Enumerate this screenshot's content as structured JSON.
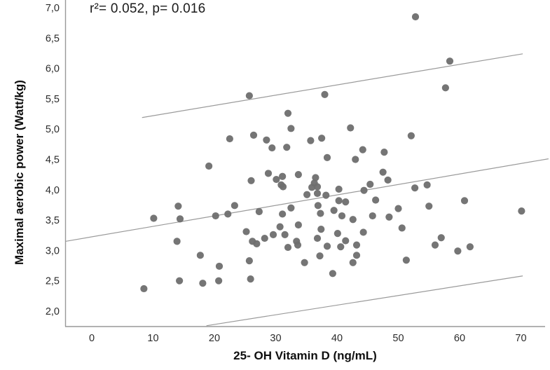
{
  "chart_data": {
    "type": "scatter",
    "title": "",
    "annotation": "r²= 0.052, p= 0.016",
    "stats": {
      "r_squared": 0.052,
      "p_value": 0.016
    },
    "xlabel": "25- OH Vitamin D (ng/mL)",
    "ylabel": "Maximal aerobic power  (Watt/kg)",
    "xlim": [
      -4.3,
      74.5
    ],
    "ylim": [
      1.76,
      7.13
    ],
    "grid": false,
    "legend": "none",
    "decimal_style": "comma",
    "point_color": "#6e6e6e",
    "line_color": "#9a9a9a",
    "axis_color": "#999999",
    "x_ticks": {
      "values": [
        0,
        10,
        20,
        30,
        40,
        50,
        60,
        70
      ],
      "labels": [
        "0",
        "10",
        "20",
        "30",
        "40",
        "50",
        "60",
        "70"
      ]
    },
    "y_ticks": {
      "values": [
        2.0,
        2.5,
        3.0,
        3.5,
        4.0,
        4.5,
        5.0,
        5.5,
        6.0,
        6.5,
        7.0
      ],
      "labels": [
        "2,0",
        "2,5",
        "3,0",
        "3,5",
        "4,0",
        "4,5",
        "5,0",
        "5,5",
        "6,0",
        "6,5",
        "7,0"
      ]
    },
    "points": [
      [
        8.5,
        2.37
      ],
      [
        10.1,
        3.53
      ],
      [
        13.9,
        3.15
      ],
      [
        14.1,
        3.73
      ],
      [
        14.3,
        2.5
      ],
      [
        14.4,
        3.52
      ],
      [
        17.7,
        2.92
      ],
      [
        18.1,
        2.46
      ],
      [
        19.1,
        4.39
      ],
      [
        20.2,
        3.57
      ],
      [
        20.7,
        2.5
      ],
      [
        20.8,
        2.74
      ],
      [
        22.2,
        3.6
      ],
      [
        22.5,
        4.84
      ],
      [
        23.3,
        3.74
      ],
      [
        25.2,
        3.31
      ],
      [
        25.7,
        5.55
      ],
      [
        25.7,
        2.83
      ],
      [
        25.9,
        2.53
      ],
      [
        26.0,
        4.15
      ],
      [
        26.2,
        3.15
      ],
      [
        26.4,
        4.9
      ],
      [
        26.9,
        3.11
      ],
      [
        27.3,
        3.64
      ],
      [
        28.2,
        3.2
      ],
      [
        28.5,
        4.82
      ],
      [
        28.8,
        4.27
      ],
      [
        29.4,
        4.69
      ],
      [
        29.6,
        3.26
      ],
      [
        30.1,
        4.17
      ],
      [
        30.7,
        3.39
      ],
      [
        30.9,
        4.08
      ],
      [
        31.1,
        4.22
      ],
      [
        31.1,
        3.6
      ],
      [
        31.2,
        4.05
      ],
      [
        31.5,
        3.26
      ],
      [
        31.8,
        4.7
      ],
      [
        32.0,
        5.26
      ],
      [
        32.0,
        3.05
      ],
      [
        32.5,
        5.01
      ],
      [
        32.5,
        3.7
      ],
      [
        33.4,
        3.15
      ],
      [
        33.6,
        3.09
      ],
      [
        33.7,
        4.25
      ],
      [
        33.7,
        3.42
      ],
      [
        34.7,
        2.8
      ],
      [
        35.1,
        3.92
      ],
      [
        35.7,
        4.81
      ],
      [
        35.9,
        4.04
      ],
      [
        36.3,
        4.11
      ],
      [
        36.5,
        4.2
      ],
      [
        36.8,
        4.05
      ],
      [
        36.8,
        3.94
      ],
      [
        36.8,
        3.2
      ],
      [
        36.9,
        3.74
      ],
      [
        37.2,
        2.91
      ],
      [
        37.3,
        3.61
      ],
      [
        37.4,
        3.35
      ],
      [
        37.5,
        4.85
      ],
      [
        38.0,
        5.57
      ],
      [
        38.2,
        3.91
      ],
      [
        38.4,
        4.53
      ],
      [
        38.4,
        3.07
      ],
      [
        39.3,
        2.62
      ],
      [
        39.5,
        3.66
      ],
      [
        40.1,
        3.28
      ],
      [
        40.3,
        4.01
      ],
      [
        40.3,
        3.82
      ],
      [
        40.6,
        3.06
      ],
      [
        40.8,
        3.57
      ],
      [
        41.4,
        3.8
      ],
      [
        41.4,
        3.16
      ],
      [
        42.2,
        5.02
      ],
      [
        42.6,
        3.51
      ],
      [
        42.6,
        2.8
      ],
      [
        43.0,
        4.5
      ],
      [
        43.2,
        3.09
      ],
      [
        43.2,
        2.92
      ],
      [
        44.2,
        4.66
      ],
      [
        44.3,
        3.3
      ],
      [
        44.4,
        3.99
      ],
      [
        45.4,
        4.09
      ],
      [
        45.8,
        3.57
      ],
      [
        46.3,
        3.83
      ],
      [
        47.5,
        4.29
      ],
      [
        47.7,
        4.62
      ],
      [
        48.3,
        4.16
      ],
      [
        48.5,
        3.55
      ],
      [
        50.0,
        3.69
      ],
      [
        50.6,
        3.37
      ],
      [
        51.3,
        2.84
      ],
      [
        52.1,
        4.89
      ],
      [
        52.7,
        4.03
      ],
      [
        52.8,
        6.85
      ],
      [
        54.7,
        4.08
      ],
      [
        55.0,
        3.73
      ],
      [
        56.0,
        3.09
      ],
      [
        57.0,
        3.21
      ],
      [
        57.7,
        5.68
      ],
      [
        58.4,
        6.12
      ],
      [
        59.7,
        2.99
      ],
      [
        60.8,
        3.82
      ],
      [
        61.7,
        3.06
      ],
      [
        70.1,
        3.65
      ]
    ],
    "lines": [
      {
        "name": "regression-line",
        "x1": -4.3,
        "y1": 3.15,
        "x2": 74.5,
        "y2": 4.51
      },
      {
        "name": "upper-ci-line",
        "x1": 8.2,
        "y1": 5.19,
        "x2": 70.3,
        "y2": 6.24
      },
      {
        "name": "lower-ci-line",
        "x1": 18.7,
        "y1": 1.76,
        "x2": 70.3,
        "y2": 2.58
      }
    ]
  }
}
